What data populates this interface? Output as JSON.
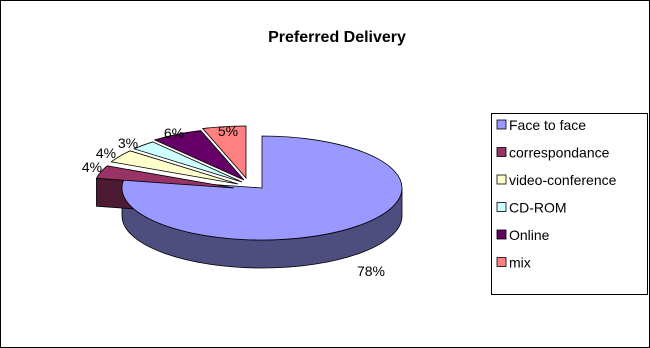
{
  "chart_data": {
    "type": "pie",
    "title": "Preferred Delivery",
    "style": "3d-exploded",
    "legend_position": "right",
    "grid": false,
    "slices": [
      {
        "name": "Face to face",
        "value": 78,
        "label": "78%",
        "top_color": "#9999FF",
        "side_color": "#4D4D80"
      },
      {
        "name": "correspondance",
        "value": 4,
        "label": "4%",
        "top_color": "#993366",
        "side_color": "#4D1A33"
      },
      {
        "name": "video-conference",
        "value": 4,
        "label": "4%",
        "top_color": "#FFFFCC",
        "side_color": "#808066"
      },
      {
        "name": "CD-ROM",
        "value": 3,
        "label": "3%",
        "top_color": "#CCFFFF",
        "side_color": "#668080"
      },
      {
        "name": "Online",
        "value": 6,
        "label": "6%",
        "top_color": "#660066",
        "side_color": "#330033"
      },
      {
        "name": "mix",
        "value": 5,
        "label": "5%",
        "top_color": "#FF8080",
        "side_color": "#804040"
      }
    ]
  }
}
